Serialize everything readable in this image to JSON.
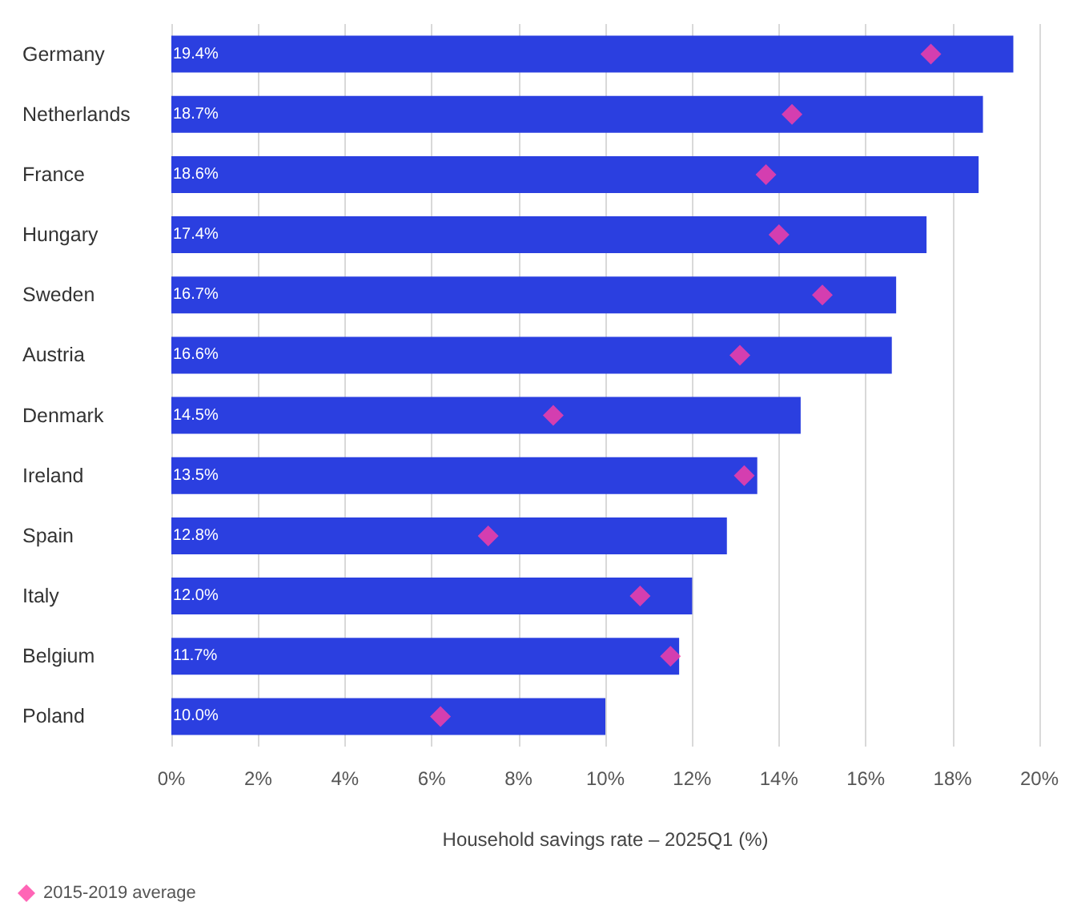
{
  "chart_data": {
    "type": "bar",
    "orientation": "horizontal",
    "xlabel": "Household savings rate – 2025Q1 (%)",
    "categories": [
      "Germany",
      "Netherlands",
      "France",
      "Hungary",
      "Sweden",
      "Austria",
      "Denmark",
      "Ireland",
      "Spain",
      "Italy",
      "Belgium",
      "Poland"
    ],
    "series": [
      {
        "color": "#2b3fe0",
        "values": [
          19.4,
          18.7,
          18.6,
          17.4,
          16.7,
          16.6,
          14.5,
          13.5,
          12.8,
          12.0,
          11.7,
          10.0
        ],
        "value_labels": [
          "19.4%",
          "18.7%",
          "18.6%",
          "17.4%",
          "16.7%",
          "16.6%",
          "14.5%",
          "13.5%",
          "12.8%",
          "12.0%",
          "11.7%",
          "10.0%"
        ]
      },
      {
        "type": "scatter",
        "name": "2015-2019 average",
        "color": "#ff3fa4",
        "marker": "diamond",
        "x": [
          "Germany",
          "Netherlands",
          "France",
          "Hungary",
          "Sweden",
          "Austria",
          "Denmark",
          "Ireland",
          "Spain",
          "Italy",
          "Belgium",
          "Poland"
        ],
        "values": [
          17.5,
          14.3,
          13.7,
          14.0,
          15.0,
          13.1,
          8.8,
          13.2,
          7.3,
          10.8,
          11.5,
          6.2
        ]
      }
    ],
    "xlim": [
      0,
      20
    ],
    "xticks": [
      {
        "value": 0,
        "label": "0%"
      },
      {
        "value": 2,
        "label": "2%"
      },
      {
        "value": 4,
        "label": "4%"
      },
      {
        "value": 6,
        "label": "6%"
      },
      {
        "value": 8,
        "label": "8%"
      },
      {
        "value": 10,
        "label": "10%"
      },
      {
        "value": 12,
        "label": "12%"
      },
      {
        "value": 14,
        "label": "14%"
      },
      {
        "value": 16,
        "label": "16%"
      },
      {
        "value": 18,
        "label": "18%"
      },
      {
        "value": 20,
        "label": "20%"
      }
    ],
    "grid": "x",
    "legend": "bottom left"
  }
}
